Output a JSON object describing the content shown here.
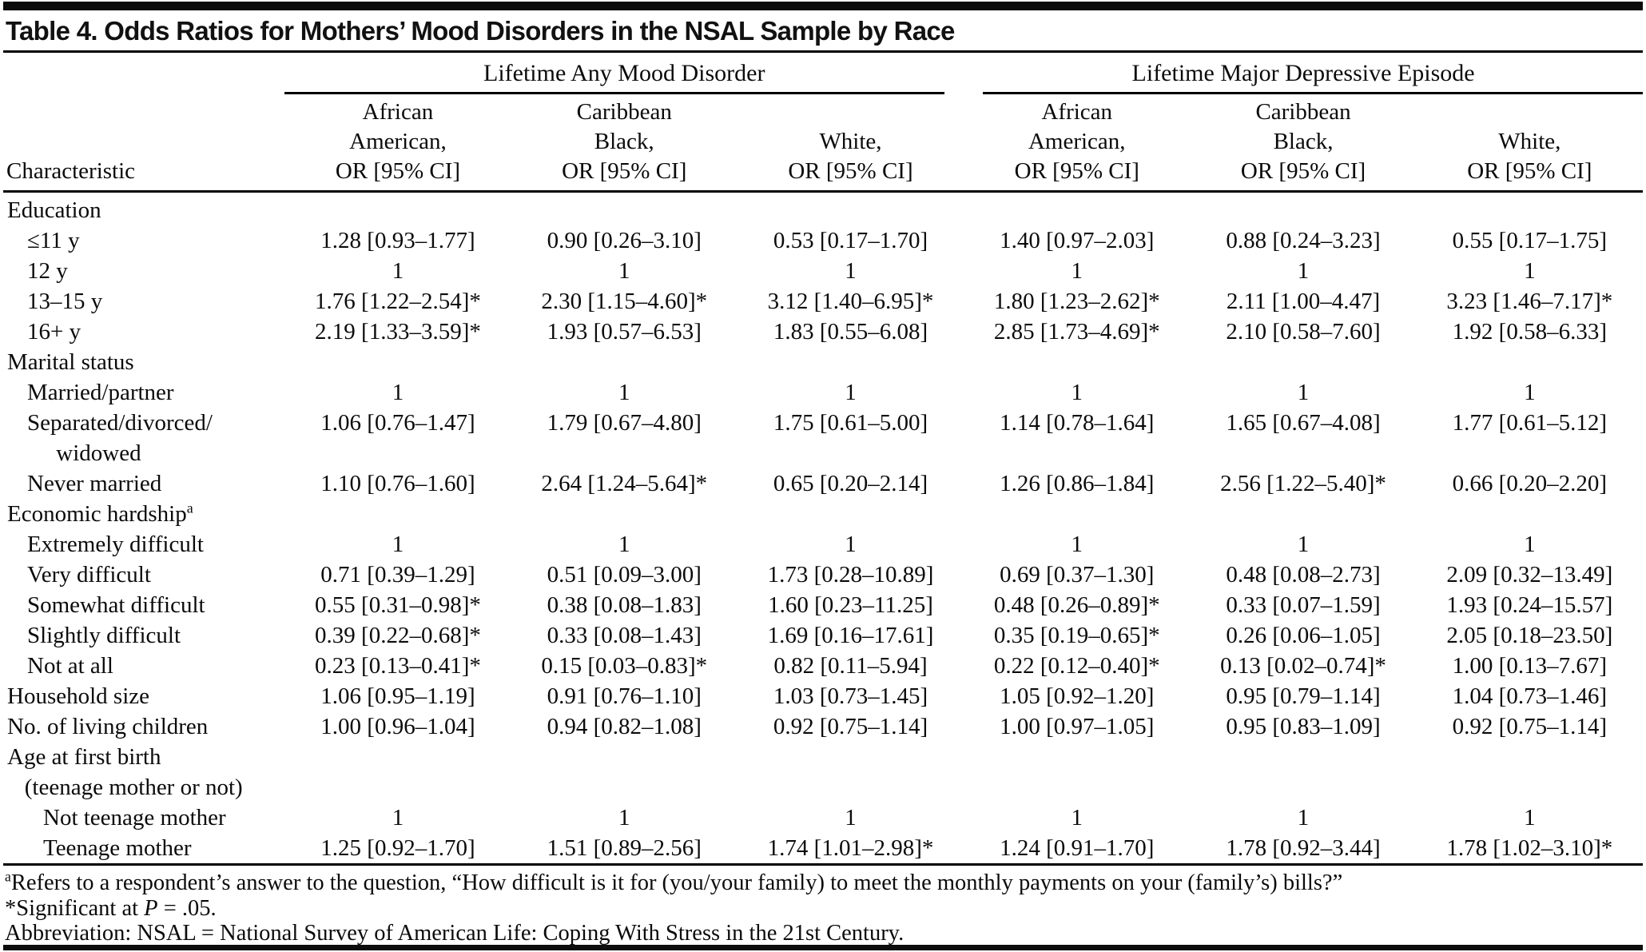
{
  "title": "Table 4. Odds Ratios for Mothers’ Mood Disorders in the NSAL Sample by Race",
  "table": {
    "row_header": "Characteristic",
    "groups": [
      {
        "label": "Lifetime Any Mood Disorder"
      },
      {
        "label": "Lifetime Major Depressive Episode"
      }
    ],
    "columns": [
      "African\nAmerican,\nOR [95% CI]",
      "Caribbean\nBlack,\nOR [95% CI]",
      "White,\nOR [95% CI]",
      "African\nAmerican,\nOR [95% CI]",
      "Caribbean\nBlack,\nOR [95% CI]",
      "White,\nOR [95% CI]"
    ],
    "rows": [
      {
        "label": "Education",
        "indent": 0,
        "values": []
      },
      {
        "label": "≤11 y",
        "indent": 1,
        "values": [
          "1.28 [0.93–1.77]",
          "0.90 [0.26–3.10]",
          "0.53 [0.17–1.70]",
          "1.40 [0.97–2.03]",
          "0.88 [0.24–3.23]",
          "0.55 [0.17–1.75]"
        ]
      },
      {
        "label": "12 y",
        "indent": 1,
        "values": [
          "1",
          "1",
          "1",
          "1",
          "1",
          "1"
        ]
      },
      {
        "label": "13–15 y",
        "indent": 1,
        "values": [
          "1.76 [1.22–2.54]*",
          "2.30 [1.15–4.60]*",
          "3.12 [1.40–6.95]*",
          "1.80 [1.23–2.62]*",
          "2.11 [1.00–4.47]",
          "3.23 [1.46–7.17]*"
        ]
      },
      {
        "label": "16+ y",
        "indent": 1,
        "values": [
          "2.19 [1.33–3.59]*",
          "1.93 [0.57–6.53]",
          "1.83 [0.55–6.08]",
          "2.85 [1.73–4.69]*",
          "2.10 [0.58–7.60]",
          "1.92 [0.58–6.33]"
        ]
      },
      {
        "label": "Marital status",
        "indent": 0,
        "values": []
      },
      {
        "label": "Married/partner",
        "indent": 1,
        "values": [
          "1",
          "1",
          "1",
          "1",
          "1",
          "1"
        ]
      },
      {
        "label": "Separated/divorced/\n     widowed",
        "indent": 1,
        "values": [
          "1.06 [0.76–1.47]",
          "1.79 [0.67–4.80]",
          "1.75 [0.61–5.00]",
          "1.14 [0.78–1.64]",
          "1.65 [0.67–4.08]",
          "1.77 [0.61–5.12]"
        ]
      },
      {
        "label": "Never married",
        "indent": 1,
        "values": [
          "1.10 [0.76–1.60]",
          "2.64 [1.24–5.64]*",
          "0.65 [0.20–2.14]",
          "1.26 [0.86–1.84]",
          "2.56 [1.22–5.40]*",
          "0.66 [0.20–2.20]"
        ]
      },
      {
        "label": "Economic hardship",
        "sup": "a",
        "indent": 0,
        "values": []
      },
      {
        "label": "Extremely difficult",
        "indent": 1,
        "values": [
          "1",
          "1",
          "1",
          "1",
          "1",
          "1"
        ]
      },
      {
        "label": "Very difficult",
        "indent": 1,
        "values": [
          "0.71 [0.39–1.29]",
          "0.51 [0.09–3.00]",
          "1.73 [0.28–10.89]",
          "0.69 [0.37–1.30]",
          "0.48 [0.08–2.73]",
          "2.09 [0.32–13.49]"
        ]
      },
      {
        "label": "Somewhat difficult",
        "indent": 1,
        "values": [
          "0.55 [0.31–0.98]*",
          "0.38 [0.08–1.83]",
          "1.60 [0.23–11.25]",
          "0.48 [0.26–0.89]*",
          "0.33 [0.07–1.59]",
          "1.93 [0.24–15.57]"
        ]
      },
      {
        "label": "Slightly difficult",
        "indent": 1,
        "values": [
          "0.39 [0.22–0.68]*",
          "0.33 [0.08–1.43]",
          "1.69 [0.16–17.61]",
          "0.35 [0.19–0.65]*",
          "0.26 [0.06–1.05]",
          "2.05 [0.18–23.50]"
        ]
      },
      {
        "label": "Not at all",
        "indent": 1,
        "values": [
          "0.23 [0.13–0.41]*",
          "0.15 [0.03–0.83]*",
          "0.82 [0.11–5.94]",
          "0.22 [0.12–0.40]*",
          "0.13 [0.02–0.74]*",
          "1.00 [0.13–7.67]"
        ]
      },
      {
        "label": "Household size",
        "indent": 0,
        "values": [
          "1.06 [0.95–1.19]",
          "0.91 [0.76–1.10]",
          "1.03 [0.73–1.45]",
          "1.05 [0.92–1.20]",
          "0.95 [0.79–1.14]",
          "1.04 [0.73–1.46]"
        ]
      },
      {
        "label": "No. of living children",
        "indent": 0,
        "values": [
          "1.00 [0.96–1.04]",
          "0.94 [0.82–1.08]",
          "0.92 [0.75–1.14]",
          "1.00 [0.97–1.05]",
          "0.95 [0.83–1.09]",
          "0.92 [0.75–1.14]"
        ]
      },
      {
        "label": "Age at first birth\n   (teenage mother or not)",
        "indent": 0,
        "values": []
      },
      {
        "label": "Not teenage mother",
        "indent": 2,
        "values": [
          "1",
          "1",
          "1",
          "1",
          "1",
          "1"
        ]
      },
      {
        "label": "Teenage mother",
        "indent": 2,
        "values": [
          "1.25 [0.92–1.70]",
          "1.51 [0.89–2.56]",
          "1.74 [1.01–2.98]*",
          "1.24 [0.91–1.70]",
          "1.78 [0.92–3.44]",
          "1.78 [1.02–3.10]*"
        ]
      }
    ]
  },
  "footnotes": [
    {
      "sup": "a",
      "text": "Refers to a respondent’s answer to the question, “How difficult is it for (you/your family) to meet the monthly payments on your (family’s) bills?”"
    },
    {
      "prefix": "*Significant at ",
      "italic": "P",
      "suffix": " = .05."
    },
    {
      "text": "Abbreviation: NSAL = National Survey of American Life: Coping With Stress in the 21st Century."
    }
  ]
}
